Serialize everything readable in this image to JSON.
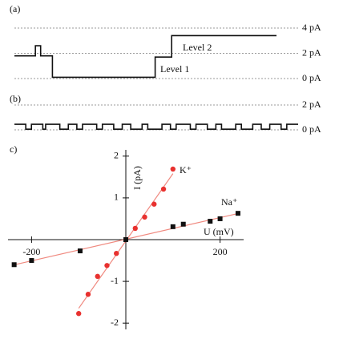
{
  "chart_data": [
    {
      "type": "trace",
      "panel": "(a)",
      "step": true,
      "x": [
        0,
        8,
        10,
        14.5,
        53.7,
        60,
        100
      ],
      "values": [
        1.8,
        2.6,
        1.8,
        0.1,
        1.7,
        3.4,
        3.4
      ],
      "xlim": [
        0,
        100
      ],
      "ylim": [
        0,
        4
      ],
      "yticks": [
        {
          "value": 0,
          "label": "0 pA"
        },
        {
          "value": 2,
          "label": "2 pA"
        },
        {
          "value": 4,
          "label": "4 pA"
        }
      ],
      "annotations": [
        "Level 1",
        "Level 2"
      ],
      "color": "#111111",
      "grid": true
    },
    {
      "type": "trace",
      "panel": "(b)",
      "step": true,
      "x": [
        0,
        4,
        6,
        10,
        11,
        16,
        19,
        22,
        24,
        29,
        31,
        35,
        38,
        41,
        45,
        47,
        52,
        55,
        57,
        62,
        64,
        68,
        71,
        73,
        78,
        80,
        84,
        87,
        90,
        94,
        96,
        100
      ],
      "values": [
        0.45,
        0.05,
        0.45,
        0.05,
        0.45,
        0.05,
        0.45,
        0.05,
        0.45,
        0.05,
        0.45,
        0.05,
        0.45,
        0.05,
        0.45,
        0.05,
        0.45,
        0.05,
        0.45,
        0.05,
        0.45,
        0.05,
        0.45,
        0.05,
        0.45,
        0.05,
        0.45,
        0.05,
        0.45,
        0.05,
        0.45,
        0.45
      ],
      "xlim": [
        0,
        100
      ],
      "ylim": [
        0,
        2
      ],
      "yticks": [
        {
          "value": 0,
          "label": "0 pA"
        },
        {
          "value": 2,
          "label": "2 pA"
        }
      ],
      "color": "#111111",
      "grid": true
    },
    {
      "type": "scatter",
      "panel": "c)",
      "x_label": "U (mV)",
      "y_label": "I (pA)",
      "xlim": [
        -250,
        250
      ],
      "ylim": [
        -2.15,
        2.15
      ],
      "xticks": [
        -200,
        200
      ],
      "yticks": [
        -2,
        -1,
        1,
        2
      ],
      "fit": true,
      "series": [
        {
          "name": "K⁺",
          "color": "#e8312f",
          "marker": "circle",
          "x": [
            -100,
            -80,
            -60,
            -40,
            -20,
            0,
            20,
            40,
            60,
            80,
            100
          ],
          "values": [
            -1.77,
            -1.31,
            -0.88,
            -0.62,
            -0.33,
            0,
            0.27,
            0.54,
            0.85,
            1.21,
            1.69
          ]
        },
        {
          "name": "Na⁺",
          "color": "#111111",
          "marker": "square",
          "x": [
            -237,
            -200,
            -97,
            0,
            100,
            122,
            179,
            200,
            238
          ],
          "values": [
            -0.6,
            -0.5,
            -0.27,
            0,
            0.31,
            0.37,
            0.44,
            0.5,
            0.63
          ]
        }
      ]
    }
  ]
}
